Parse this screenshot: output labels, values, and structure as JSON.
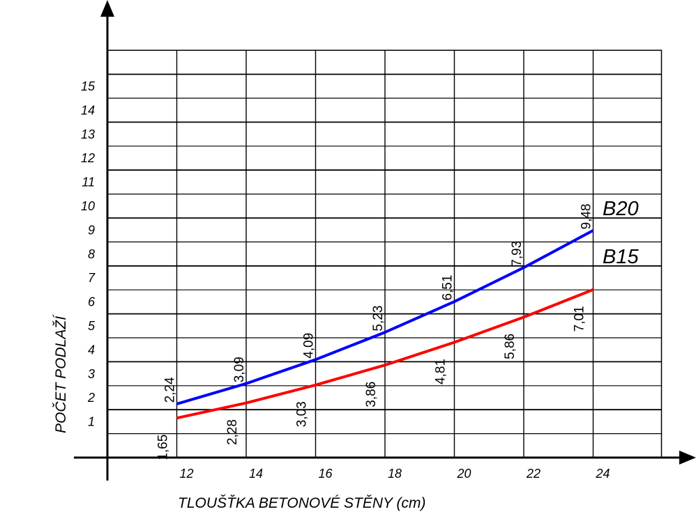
{
  "chart_data": {
    "type": "line",
    "title": "",
    "xlabel": "TLOUŠŤKA BETONOVÉ STĚNY (cm)",
    "ylabel": "POČET PODLAŽÍ",
    "x": [
      12,
      14,
      16,
      18,
      20,
      22,
      24
    ],
    "x_ticks": [
      "12",
      "14",
      "16",
      "18",
      "20",
      "22",
      "24"
    ],
    "y_ticks": [
      "1",
      "2",
      "3",
      "4",
      "5",
      "6",
      "7",
      "8",
      "9",
      "10",
      "11",
      "12",
      "13",
      "14",
      "15"
    ],
    "xlim": [
      10,
      26
    ],
    "ylim": [
      0,
      17
    ],
    "grid": true,
    "series": [
      {
        "name": "B20",
        "color": "#0000ff",
        "values": [
          2.24,
          3.09,
          4.09,
          5.23,
          6.51,
          7.93,
          9.48
        ],
        "labels": [
          "2,24",
          "3,09",
          "4,09",
          "5,23",
          "6,51",
          "7,93",
          "9,48"
        ]
      },
      {
        "name": "B15",
        "color": "#ff0000",
        "values": [
          1.65,
          2.28,
          3.03,
          3.86,
          4.81,
          5.86,
          7.01
        ],
        "labels": [
          "1,65",
          "2,28",
          "3,03",
          "3,86",
          "4,81",
          "5,86",
          "7,01"
        ]
      }
    ]
  }
}
